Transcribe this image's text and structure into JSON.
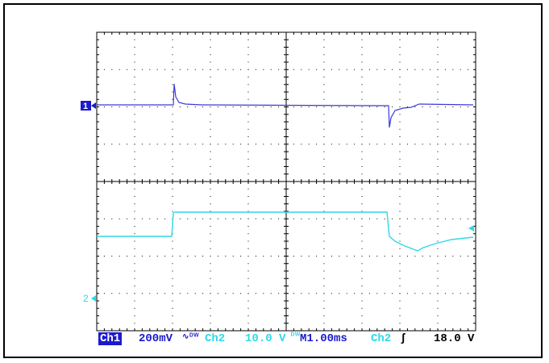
{
  "channels": [
    {
      "id": "ch1",
      "marker": "1",
      "color": "#3a3ad6"
    },
    {
      "id": "ch2",
      "marker": "2",
      "color": "#2fd9e6"
    }
  ],
  "status_bar": {
    "ch1_label": "Ch1",
    "ch1_scale": "200mV",
    "ch1_coupling": "∿ᴰᵂ",
    "ch2_label": "Ch2",
    "ch2_scale": "10.0 V",
    "ch2_coupling": "ᴰᵂ",
    "timebase": "M1.00ms",
    "trigger_source": "Ch2",
    "trigger_edge": "ʃ",
    "trigger_level": "18.0 V"
  },
  "colors": {
    "grid": "#000000",
    "ch1": "#3a3ad6",
    "ch2": "#2fd9e6",
    "status_bg": "#ffffff"
  }
}
